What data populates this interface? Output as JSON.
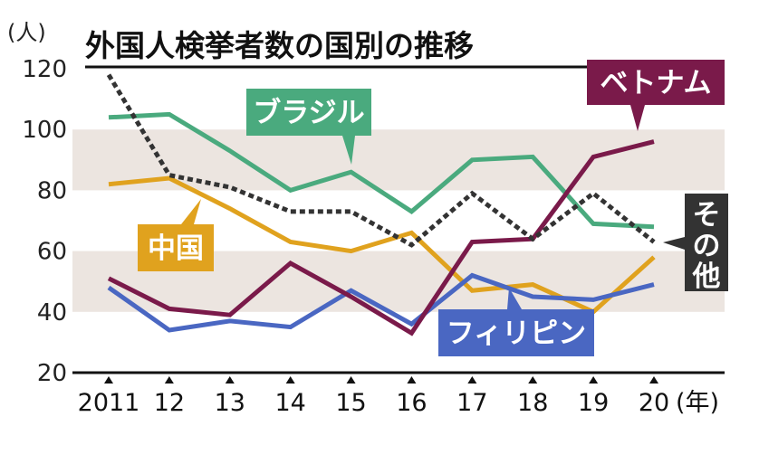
{
  "chart_data": {
    "type": "line",
    "title": "外国人検挙者数の国別の推移",
    "y_unit": "(人)",
    "x_unit": "(年)",
    "categories": [
      "2011",
      "12",
      "13",
      "14",
      "15",
      "16",
      "17",
      "18",
      "19",
      "20"
    ],
    "ylim": [
      20,
      120
    ],
    "yticks": [
      "20",
      "40",
      "60",
      "80",
      "100",
      "120"
    ],
    "bands": [
      [
        40,
        60
      ],
      [
        80,
        100
      ]
    ],
    "grid": false,
    "series": [
      {
        "name": "ブラジル",
        "color": "#4aaa7e",
        "style": "solid",
        "values": [
          104,
          105,
          93,
          80,
          86,
          73,
          90,
          91,
          69,
          68
        ]
      },
      {
        "name": "中国",
        "color": "#e0a21e",
        "style": "solid",
        "values": [
          82,
          84,
          74,
          63,
          60,
          66,
          47,
          49,
          40,
          58
        ]
      },
      {
        "name": "フィリピン",
        "color": "#4a67c2",
        "style": "solid",
        "values": [
          48,
          34,
          37,
          35,
          47,
          36,
          52,
          45,
          44,
          49
        ]
      },
      {
        "name": "ベトナム",
        "color": "#7a1a4a",
        "style": "solid",
        "values": [
          51,
          41,
          39,
          56,
          45,
          33,
          63,
          64,
          91,
          96
        ]
      },
      {
        "name": "その他",
        "color": "#333333",
        "style": "dashed",
        "values": [
          118,
          85,
          81,
          73,
          73,
          62,
          79,
          64,
          79,
          63
        ]
      }
    ]
  }
}
